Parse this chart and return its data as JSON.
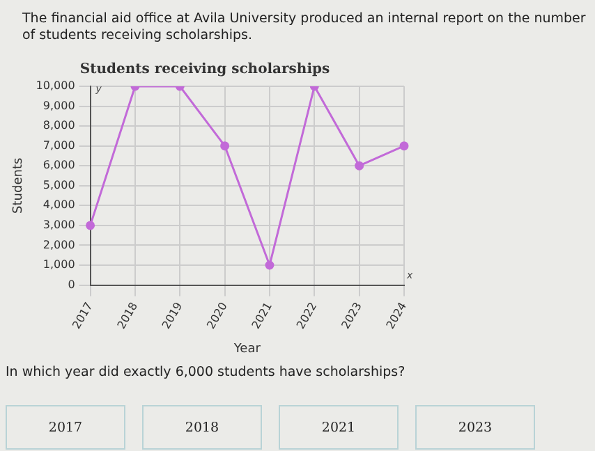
{
  "chart_data": {
    "type": "line",
    "title": "Students receiving scholarships",
    "xlabel": "Year",
    "ylabel": "Students",
    "categories": [
      "2017",
      "2018",
      "2019",
      "2020",
      "2021",
      "2022",
      "2023",
      "2024"
    ],
    "series": [
      {
        "color": "#c26ad8",
        "values": [
          3000,
          10000,
          10000,
          7000,
          1000,
          10000,
          6000,
          7000
        ]
      }
    ],
    "ylim": [
      0,
      10000
    ],
    "yticks": [
      {
        "value": 0,
        "label": "0"
      },
      {
        "value": 1000,
        "label": "1,000"
      },
      {
        "value": 2000,
        "label": "2,000"
      },
      {
        "value": 3000,
        "label": "3,000"
      },
      {
        "value": 4000,
        "label": "4,000"
      },
      {
        "value": 5000,
        "label": "5,000"
      },
      {
        "value": 6000,
        "label": "6,000"
      },
      {
        "value": 7000,
        "label": "7,000"
      },
      {
        "value": 8000,
        "label": "8,000"
      },
      {
        "value": 9000,
        "label": "9,000"
      },
      {
        "value": 10000,
        "label": "10,000"
      }
    ],
    "grid": true,
    "marker": "circle",
    "line_style": "solid",
    "annotations": [
      "The financial aid office at Avila University produced an internal report on the number of students receiving scholarships.",
      "In which year did exactly 6,000 students have scholarships?",
      "2017",
      "2018",
      "2021",
      "2023",
      "y",
      "x"
    ]
  }
}
